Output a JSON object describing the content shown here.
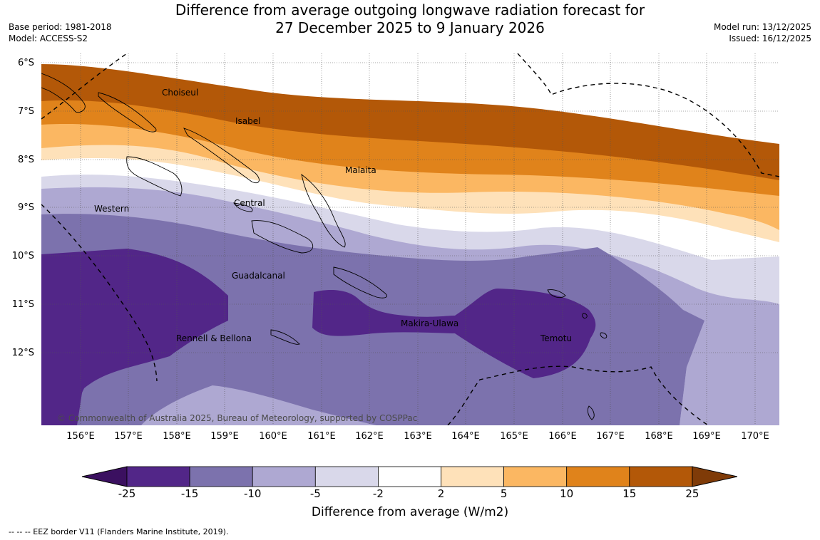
{
  "header": {
    "title_line1": "Difference from average outgoing longwave radiation forecast for",
    "title_line2": "27 December 2025 to 9 January 2026",
    "base_period": "Base period: 1981-2018",
    "model": "Model: ACCESS-S2",
    "model_run": "Model run: 13/12/2025",
    "issued": "Issued: 16/12/2025"
  },
  "map": {
    "lat_labels": [
      "6°S",
      "7°S",
      "8°S",
      "9°S",
      "10°S",
      "11°S",
      "12°S"
    ],
    "lon_labels": [
      "156°E",
      "157°E",
      "158°E",
      "159°E",
      "160°E",
      "161°E",
      "162°E",
      "163°E",
      "164°E",
      "165°E",
      "166°E",
      "167°E",
      "168°E",
      "169°E",
      "170°E"
    ],
    "places": {
      "choiseul": "Choiseul",
      "isabel": "Isabel",
      "malaita": "Malaita",
      "western": "Western",
      "central": "Central",
      "guadalcanal": "Guadalcanal",
      "makira": "Makira-Ulawa",
      "rennell": "Rennell & Bellona",
      "temotu": "Temotu"
    },
    "copyright": "© Commonwealth of Australia 2025, Bureau of Meteorology, supported by COSPPac"
  },
  "colorbar": {
    "ticks": [
      "-25",
      "-15",
      "-10",
      "-5",
      "-2",
      "2",
      "5",
      "10",
      "15",
      "25"
    ],
    "colors": [
      "#3b1060",
      "#522688",
      "#7c72ad",
      "#aea8d2",
      "#d9d8ea",
      "#ffffff",
      "#fee1b9",
      "#fbb762",
      "#e0831b",
      "#b35808",
      "#7f3b08"
    ],
    "title": "Difference from average (W/m2)"
  },
  "footnote": "--  --  -- EEZ border V11 (Flanders Marine Institute, 2019)."
}
